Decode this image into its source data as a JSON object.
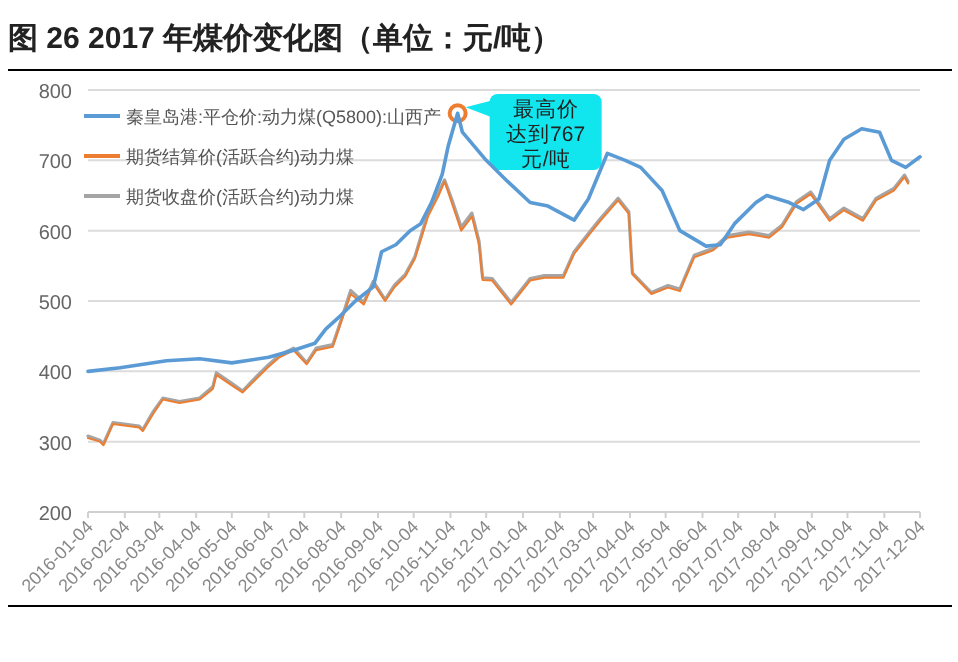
{
  "chart_data": {
    "type": "line",
    "title": "图 26 2017 年煤价变化图（单位：元/吨）",
    "xlim": [
      "2016-01-04",
      "2017-12-04"
    ],
    "xticks": [
      "2016-01-04",
      "2016-02-04",
      "2016-03-04",
      "2016-04-04",
      "2016-05-04",
      "2016-06-04",
      "2016-07-04",
      "2016-08-04",
      "2016-09-04",
      "2016-10-04",
      "2016-11-04",
      "2016-12-04",
      "2017-01-04",
      "2017-02-04",
      "2017-03-04",
      "2017-04-04",
      "2017-05-04",
      "2017-06-04",
      "2017-07-04",
      "2017-08-04",
      "2017-09-04",
      "2017-10-04",
      "2017-11-04",
      "2017-12-04"
    ],
    "ylim": [
      200,
      800
    ],
    "yticks": [
      200,
      300,
      400,
      500,
      600,
      700,
      800
    ],
    "grid": "y",
    "legend": "top left",
    "marker": "none",
    "line_style": "solid",
    "annotations": [
      {
        "text": "最高价达到767元/吨",
        "x": "2016-11-10",
        "y": 767
      }
    ],
    "series": [
      {
        "name": "秦皇岛港:平仓价:动力煤(Q5800):山西产",
        "color": "#5b9bd5",
        "x": [
          "2016-01-04",
          "2016-01-31",
          "2016-03-10",
          "2016-04-07",
          "2016-05-04",
          "2016-06-04",
          "2016-06-25",
          "2016-07-13",
          "2016-07-22",
          "2016-08-04",
          "2016-08-16",
          "2016-08-31",
          "2016-09-07",
          "2016-09-19",
          "2016-10-01",
          "2016-10-10",
          "2016-10-19",
          "2016-10-28",
          "2016-11-02",
          "2016-11-10",
          "2016-11-14",
          "2016-12-04",
          "2016-12-22",
          "2017-01-10",
          "2017-01-25",
          "2017-02-16",
          "2017-02-28",
          "2017-03-16",
          "2017-03-31",
          "2017-04-13",
          "2017-05-01",
          "2017-05-16",
          "2017-06-07",
          "2017-06-19",
          "2017-07-01",
          "2017-07-19",
          "2017-07-28",
          "2017-08-16",
          "2017-08-28",
          "2017-09-10",
          "2017-09-19",
          "2017-10-01",
          "2017-10-16",
          "2017-10-31",
          "2017-11-10",
          "2017-11-22",
          "2017-12-04"
        ],
        "values": [
          400,
          405,
          415,
          418,
          412,
          420,
          430,
          440,
          460,
          480,
          500,
          520,
          570,
          580,
          600,
          610,
          640,
          680,
          720,
          767,
          740,
          700,
          670,
          640,
          635,
          615,
          645,
          710,
          700,
          690,
          657,
          600,
          578,
          580,
          610,
          640,
          650,
          640,
          630,
          645,
          700,
          730,
          745,
          740,
          700,
          690,
          705
        ]
      },
      {
        "name": "期货结算价(活跃合约)动力煤",
        "color": "#ed7d31",
        "x": [
          "2016-01-04",
          "2016-01-14",
          "2016-01-17",
          "2016-01-25",
          "2016-02-16",
          "2016-02-19",
          "2016-02-28",
          "2016-03-07",
          "2016-03-21",
          "2016-04-07",
          "2016-04-18",
          "2016-04-21",
          "2016-05-04",
          "2016-05-13",
          "2016-05-22",
          "2016-06-03",
          "2016-06-13",
          "2016-06-25",
          "2016-07-06",
          "2016-07-14",
          "2016-07-28",
          "2016-08-04",
          "2016-08-12",
          "2016-08-23",
          "2016-08-31",
          "2016-09-10",
          "2016-09-18",
          "2016-09-27",
          "2016-10-05",
          "2016-10-16",
          "2016-10-25",
          "2016-10-30",
          "2016-11-05",
          "2016-11-13",
          "2016-11-22",
          "2016-11-28",
          "2016-12-01",
          "2016-12-09",
          "2016-12-25",
          "2017-01-10",
          "2017-01-22",
          "2017-02-07",
          "2017-02-16",
          "2017-03-01",
          "2017-03-10",
          "2017-03-25",
          "2017-04-03",
          "2017-04-06",
          "2017-04-22",
          "2017-05-06",
          "2017-05-16",
          "2017-05-28",
          "2017-06-13",
          "2017-06-25",
          "2017-07-13",
          "2017-07-30",
          "2017-08-10",
          "2017-08-22",
          "2017-09-03",
          "2017-09-19",
          "2017-10-01",
          "2017-10-17",
          "2017-10-28",
          "2017-11-12",
          "2017-11-21",
          "2017-11-24"
        ],
        "values": [
          305,
          300,
          295,
          325,
          320,
          315,
          340,
          360,
          355,
          360,
          375,
          395,
          380,
          370,
          385,
          405,
          420,
          430,
          410,
          430,
          435,
          470,
          510,
          495,
          525,
          500,
          520,
          535,
          560,
          620,
          650,
          670,
          640,
          600,
          620,
          580,
          530,
          529,
          495,
          529,
          533,
          533,
          567,
          595,
          614,
          643,
          624,
          538,
          510,
          519,
          514,
          562,
          572,
          590,
          595,
          590,
          605,
          638,
          652,
          614,
          629,
          614,
          643,
          657,
          676,
          667
        ]
      },
      {
        "name": "期货收盘价(活跃合约)动力煤",
        "color": "#a5a5a5",
        "x": [
          "2016-01-04",
          "2016-01-14",
          "2016-01-17",
          "2016-01-25",
          "2016-02-16",
          "2016-02-19",
          "2016-02-28",
          "2016-03-07",
          "2016-03-21",
          "2016-04-07",
          "2016-04-18",
          "2016-04-21",
          "2016-05-04",
          "2016-05-13",
          "2016-05-22",
          "2016-06-03",
          "2016-06-13",
          "2016-06-25",
          "2016-07-06",
          "2016-07-14",
          "2016-07-28",
          "2016-08-04",
          "2016-08-12",
          "2016-08-23",
          "2016-08-31",
          "2016-09-10",
          "2016-09-18",
          "2016-09-27",
          "2016-10-05",
          "2016-10-16",
          "2016-10-25",
          "2016-10-30",
          "2016-11-05",
          "2016-11-13",
          "2016-11-22",
          "2016-11-28",
          "2016-12-01",
          "2016-12-09",
          "2016-12-25",
          "2017-01-10",
          "2017-01-22",
          "2017-02-07",
          "2017-02-16",
          "2017-03-01",
          "2017-03-10",
          "2017-03-25",
          "2017-04-03",
          "2017-04-06",
          "2017-04-22",
          "2017-05-06",
          "2017-05-16",
          "2017-05-28",
          "2017-06-13",
          "2017-06-25",
          "2017-07-13",
          "2017-07-30",
          "2017-08-10",
          "2017-08-22",
          "2017-09-03",
          "2017-09-19",
          "2017-10-01",
          "2017-10-17",
          "2017-10-28",
          "2017-11-12",
          "2017-11-21",
          "2017-11-24"
        ],
        "values": [
          308,
          302,
          297,
          327,
          322,
          317,
          343,
          362,
          357,
          362,
          378,
          398,
          383,
          372,
          388,
          408,
          423,
          433,
          412,
          433,
          438,
          473,
          515,
          498,
          528,
          502,
          523,
          538,
          563,
          625,
          655,
          672,
          645,
          605,
          625,
          585,
          533,
          532,
          498,
          532,
          536,
          536,
          570,
          598,
          617,
          646,
          627,
          540,
          512,
          522,
          517,
          565,
          575,
          593,
          598,
          593,
          608,
          641,
          655,
          617,
          632,
          617,
          646,
          660,
          679,
          670
        ]
      }
    ]
  }
}
